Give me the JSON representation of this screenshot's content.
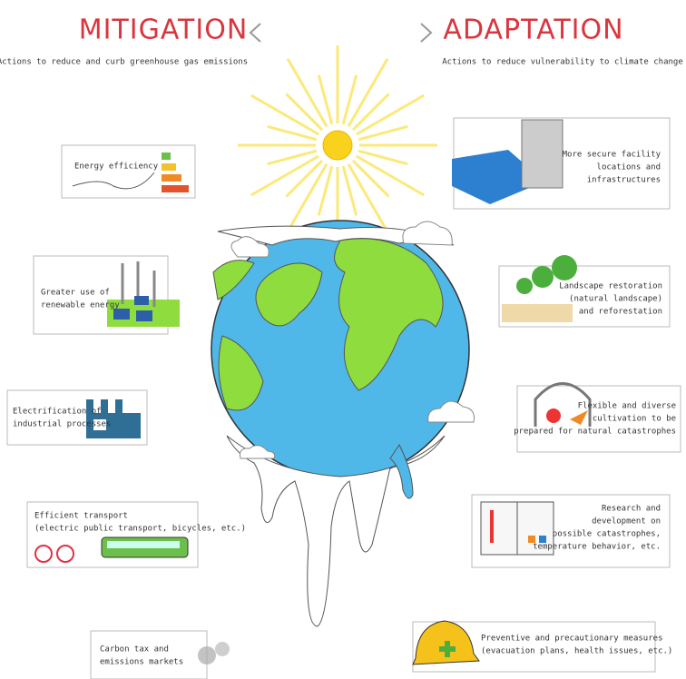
{
  "mitigation": {
    "title": "MITIGATION",
    "subtitle": "Actions to reduce and curb greenhouse gas emissions",
    "items": [
      {
        "lines": [
          "Energy efficiency"
        ]
      },
      {
        "lines": [
          "Greater use of",
          "renewable energy"
        ]
      },
      {
        "lines": [
          "Electrification of",
          "industrial processes"
        ]
      },
      {
        "lines": [
          "Efficient transport",
          "(electric public transport, bicycles, etc.)"
        ]
      },
      {
        "lines": [
          "Carbon tax and",
          "emissions markets"
        ]
      }
    ]
  },
  "adaptation": {
    "title": "ADAPTATION",
    "subtitle": "Actions to reduce vulnerability to climate change",
    "items": [
      {
        "lines": [
          "More secure facility",
          "locations and",
          "infrastructures"
        ]
      },
      {
        "lines": [
          "Landscape restoration",
          "(natural landscape)",
          "and reforestation"
        ]
      },
      {
        "lines": [
          "Flexible and diverse",
          "cultivation to be",
          "prepared for natural catastrophes"
        ]
      },
      {
        "lines": [
          "Research and",
          "development on",
          "possible catastrophes,",
          "temperature behavior, etc."
        ]
      },
      {
        "lines": [
          "Preventive and precautionary measures",
          "(evacuation plans, health issues, etc.)"
        ]
      }
    ]
  }
}
